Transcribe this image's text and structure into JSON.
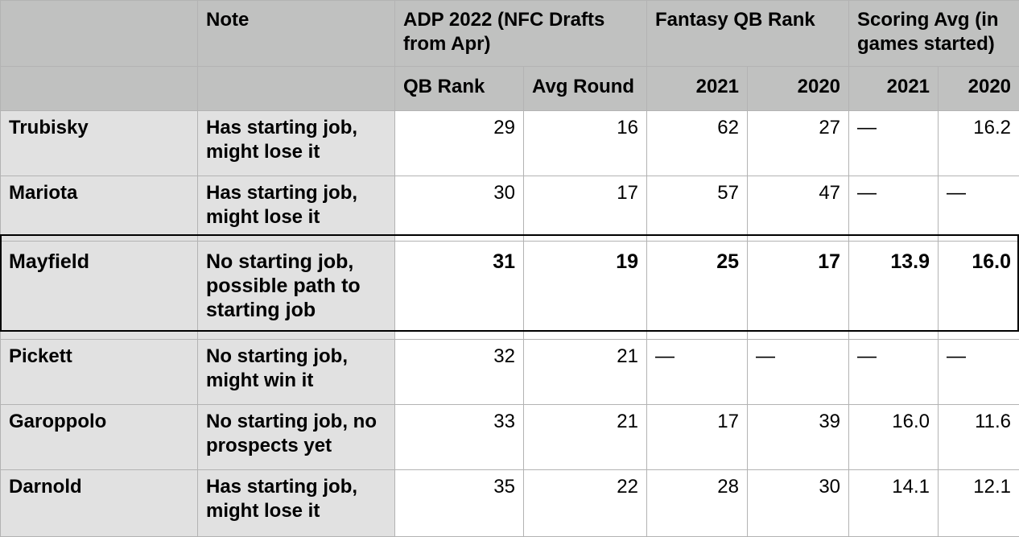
{
  "header": {
    "group_row": {
      "blank": "",
      "note": "Note",
      "adp": "ADP 2022 (NFC Drafts from Apr)",
      "fantasy_rank": "Fantasy QB Rank",
      "scoring_avg": "Scoring Avg (in games started)"
    },
    "sub_row": {
      "blank1": "",
      "blank2": "",
      "qb_rank": "QB Rank",
      "avg_round": "Avg Round",
      "rank_2021": "2021",
      "rank_2020": "2020",
      "score_2021": "2021",
      "score_2020": "2020"
    }
  },
  "rows": [
    {
      "player": "Trubisky",
      "note": "Has starting job, might lose it",
      "qb_rank": "29",
      "avg_round": "16",
      "rank_2021": "62",
      "rank_2020": "27",
      "score_2021": "—",
      "score_2020": "16.2"
    },
    {
      "player": "Mariota",
      "note": "Has starting job, might lose it",
      "qb_rank": "30",
      "avg_round": "17",
      "rank_2021": "57",
      "rank_2020": "47",
      "score_2021": "—",
      "score_2020": "—"
    },
    {
      "player": "Mayfield",
      "note": "No starting job, possible path to starting job",
      "qb_rank": "31",
      "avg_round": "19",
      "rank_2021": "25",
      "rank_2020": "17",
      "score_2021": "13.9",
      "score_2020": "16.0"
    },
    {
      "player": "Pickett",
      "note": "No starting job, might win it",
      "qb_rank": "32",
      "avg_round": "21",
      "rank_2021": "—",
      "rank_2020": "—",
      "score_2021": "—",
      "score_2020": "—"
    },
    {
      "player": "Garoppolo",
      "note": "No starting job, no prospects yet",
      "qb_rank": "33",
      "avg_round": "21",
      "rank_2021": "17",
      "rank_2020": "39",
      "score_2021": "16.0",
      "score_2020": "11.6"
    },
    {
      "player": "Darnold",
      "note": "Has starting job, might lose it",
      "qb_rank": "35",
      "avg_round": "22",
      "rank_2021": "28",
      "rank_2020": "30",
      "score_2021": "14.1",
      "score_2020": "12.1"
    }
  ],
  "highlighted_player": "Mayfield",
  "colors": {
    "header_bg": "#c0c1c0",
    "label_bg": "#e1e1e1",
    "cell_bg": "#ffffff",
    "grid": "#b3b3b3",
    "highlight_border": "#000000"
  }
}
